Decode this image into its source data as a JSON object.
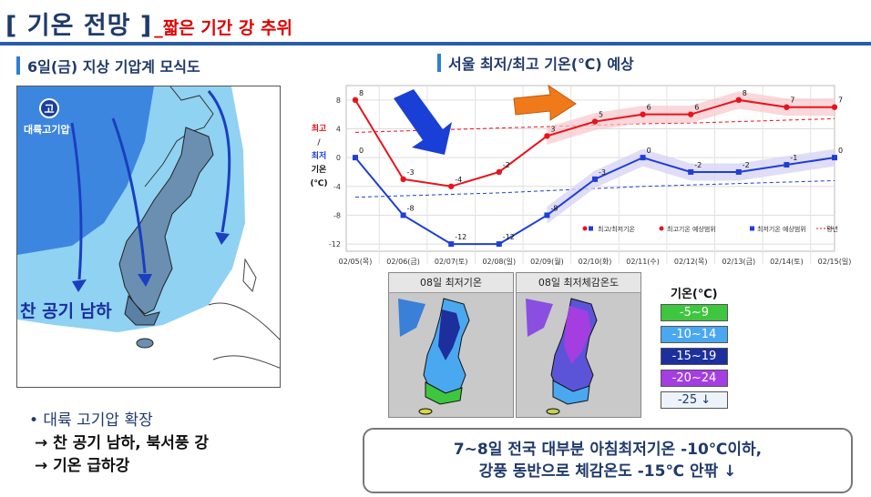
{
  "title": {
    "main": "[ 기온 전망 ]",
    "sub": "_짧은 기간 강 추위"
  },
  "left_section": {
    "heading": "6일(금) 지상 기압계 모식도",
    "badge": "고",
    "badge_label": "대륙고기압",
    "cold_label": "찬 공기 남하"
  },
  "bullets": [
    "• 대륙 고기압 확장",
    "→ 찬 공기 남하, 북서풍 강",
    "→ 기온 급하강"
  ],
  "right_section": {
    "heading": "서울 최저/최고 기온(℃) 예상"
  },
  "chart_data": {
    "type": "line",
    "categories": [
      "02/05(목)",
      "02/06(금)",
      "02/07(토)",
      "02/08(일)",
      "02/09(월)",
      "02/10(화)",
      "02/11(수)",
      "02/12(목)",
      "02/13(금)",
      "02/14(토)",
      "02/15(일)"
    ],
    "series": [
      {
        "name": "최고기온",
        "values": [
          8,
          -3,
          -4,
          -2,
          3,
          5,
          6,
          6,
          8,
          7,
          7
        ],
        "color": "#e8131c"
      },
      {
        "name": "최저기온",
        "values": [
          0,
          -8,
          -12,
          -12,
          -8,
          -3,
          0,
          -2,
          -2,
          -1,
          0
        ],
        "color": "#1e3fd6"
      }
    ],
    "normal_high": [
      3.5,
      3.7,
      3.9,
      4.1,
      4.3,
      4.5,
      4.7,
      4.8,
      5.0,
      5.2,
      5.4
    ],
    "normal_low": [
      -5.5,
      -5.3,
      -5.1,
      -4.9,
      -4.6,
      -4.3,
      -4.0,
      -3.8,
      -3.6,
      -3.4,
      -3.2
    ],
    "yticks": [
      8,
      4,
      0,
      -4,
      -8,
      -12
    ],
    "ylim": [
      -13,
      10
    ],
    "ylabel_parts": [
      "최고",
      "/",
      "최저",
      "기온",
      "(℃)"
    ],
    "legend": [
      "최고/최저기온",
      "최고기온 예상범위",
      "최저기온 예상범위",
      "평년"
    ],
    "grid": true
  },
  "maps": [
    {
      "title": "08일 최저기온"
    },
    {
      "title": "08일 최저체감온도"
    }
  ],
  "legend_scale": {
    "title": "기온(℃)",
    "items": [
      {
        "label": "-5~9",
        "bg": "#3fc63f",
        "fg": "#ffffff"
      },
      {
        "label": "-10~14",
        "bg": "#4aa8f0",
        "fg": "#ffffff"
      },
      {
        "label": "-15~19",
        "bg": "#1c2f9c",
        "fg": "#ffffff"
      },
      {
        "label": "-20~24",
        "bg": "#a43ee0",
        "fg": "#ffffff"
      },
      {
        "label": "-25 ↓",
        "bg": "#eef3fb",
        "fg": "#1f3a6b"
      }
    ]
  },
  "summary": [
    "7~8일 전국 대부분 아침최저기온 -10℃이하,",
    "강풍 동반으로 체감온도 -15℃ 안팎 ↓"
  ],
  "colors": {
    "accent": "#2a5caa",
    "title_sub": "#e00000",
    "heading": "#1f3a6b"
  }
}
